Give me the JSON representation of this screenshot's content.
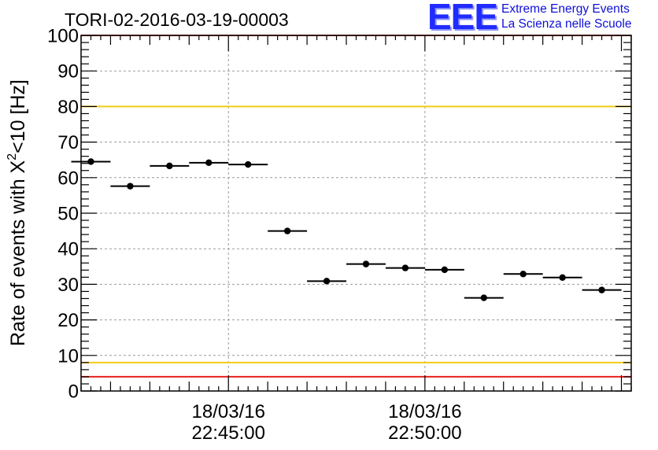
{
  "chart_data": {
    "type": "scatter",
    "title": "TORI-02-2016-03-19-00003",
    "ylabel_main": "Rate of events with X",
    "ylabel_sup": "2",
    "ylabel_rest": "<10 [Hz]",
    "ylim": [
      0,
      100
    ],
    "yticks": [
      0,
      10,
      20,
      30,
      40,
      50,
      60,
      70,
      80,
      90,
      100
    ],
    "xticks": [
      {
        "date": "18/03/16",
        "time": "22:45:00",
        "minutes": 45
      },
      {
        "date": "18/03/16",
        "time": "22:50:00",
        "minutes": 50
      }
    ],
    "xlim_minutes": [
      41.25,
      55.25
    ],
    "grid": true,
    "bin_width_minutes": 1,
    "points": [
      {
        "minutes": 41.5,
        "value": 64.5
      },
      {
        "minutes": 42.5,
        "value": 57.6
      },
      {
        "minutes": 43.5,
        "value": 63.3
      },
      {
        "minutes": 44.5,
        "value": 64.2
      },
      {
        "minutes": 45.5,
        "value": 63.7
      },
      {
        "minutes": 46.5,
        "value": 45.0
      },
      {
        "minutes": 47.5,
        "value": 30.9
      },
      {
        "minutes": 48.5,
        "value": 35.7
      },
      {
        "minutes": 49.5,
        "value": 34.6
      },
      {
        "minutes": 50.5,
        "value": 34.1
      },
      {
        "minutes": 51.5,
        "value": 26.2
      },
      {
        "minutes": 52.5,
        "value": 32.9
      },
      {
        "minutes": 53.5,
        "value": 31.9
      },
      {
        "minutes": 54.5,
        "value": 28.4
      }
    ],
    "reference_lines": [
      {
        "value": 100,
        "color": "#e8201a"
      },
      {
        "value": 80,
        "color": "#f2cc14"
      },
      {
        "value": 8,
        "color": "#f2cc14"
      },
      {
        "value": 4,
        "color": "#e8201a"
      }
    ]
  },
  "logo": {
    "mark": "EEE",
    "line1": "Extreme Energy Events",
    "line2": "La Scienza nelle Scuole"
  }
}
